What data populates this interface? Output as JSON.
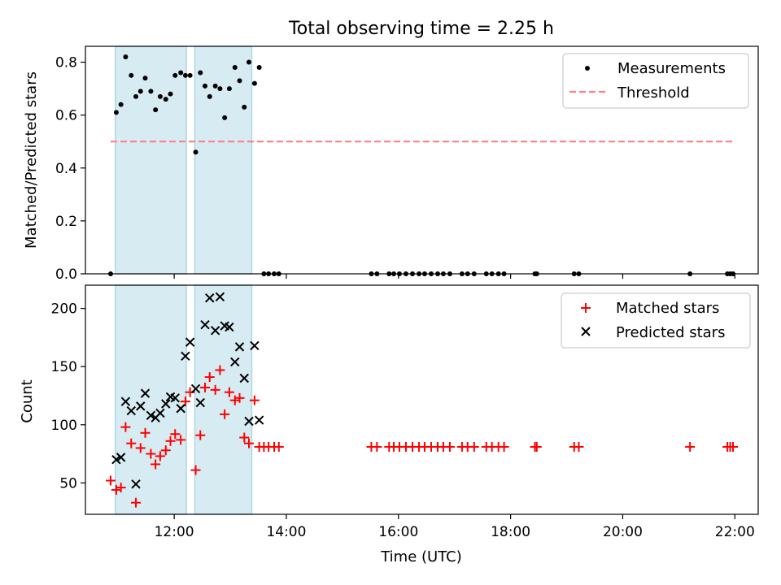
{
  "chart_data": [
    {
      "panel": "top",
      "type": "scatter",
      "title": "Total observing time = 2.25 h",
      "xlabel": "",
      "ylabel": "Matched/Predicted stars",
      "x_time_range": [
        "10:25",
        "22:25"
      ],
      "ylim": [
        0,
        0.86
      ],
      "yticks": [
        0.0,
        0.2,
        0.4,
        0.6,
        0.8
      ],
      "yticklabels": [
        "0.0",
        "0.2",
        "0.4",
        "0.6",
        "0.8"
      ],
      "shaded_intervals": [
        [
          "10:57",
          "12:13"
        ],
        [
          "12:22",
          "13:23"
        ]
      ],
      "shade_color": "#add8e6",
      "legend_position": "upper right",
      "series": [
        {
          "name": "Measurements",
          "kind": "points",
          "color": "#000000",
          "points": [
            [
              "10:52",
              0.0
            ],
            [
              "10:58",
              0.61
            ],
            [
              "11:03",
              0.64
            ],
            [
              "11:08",
              0.82
            ],
            [
              "11:14",
              0.75
            ],
            [
              "11:19",
              0.67
            ],
            [
              "11:24",
              0.69
            ],
            [
              "11:29",
              0.74
            ],
            [
              "11:35",
              0.69
            ],
            [
              "11:40",
              0.62
            ],
            [
              "11:45",
              0.67
            ],
            [
              "11:51",
              0.66
            ],
            [
              "11:56",
              0.68
            ],
            [
              "12:01",
              0.75
            ],
            [
              "12:07",
              0.76
            ],
            [
              "12:12",
              0.75
            ],
            [
              "12:17",
              0.75
            ],
            [
              "12:23",
              0.46
            ],
            [
              "12:28",
              0.76
            ],
            [
              "12:33",
              0.71
            ],
            [
              "12:38",
              0.67
            ],
            [
              "12:44",
              0.71
            ],
            [
              "12:49",
              0.7
            ],
            [
              "12:54",
              0.59
            ],
            [
              "12:59",
              0.7
            ],
            [
              "13:05",
              0.78
            ],
            [
              "13:10",
              0.73
            ],
            [
              "13:15",
              0.63
            ],
            [
              "13:20",
              0.8
            ],
            [
              "13:26",
              0.72
            ],
            [
              "13:31",
              0.78
            ],
            [
              "13:36",
              0.0
            ],
            [
              "13:41",
              0.0
            ],
            [
              "13:47",
              0.0
            ],
            [
              "13:52",
              0.0
            ],
            [
              "15:31",
              0.0
            ],
            [
              "15:37",
              0.0
            ],
            [
              "15:50",
              0.0
            ],
            [
              "15:55",
              0.0
            ],
            [
              "16:01",
              0.0
            ],
            [
              "16:08",
              0.0
            ],
            [
              "16:15",
              0.0
            ],
            [
              "16:22",
              0.0
            ],
            [
              "16:28",
              0.0
            ],
            [
              "16:35",
              0.0
            ],
            [
              "16:42",
              0.0
            ],
            [
              "16:48",
              0.0
            ],
            [
              "16:55",
              0.0
            ],
            [
              "17:08",
              0.0
            ],
            [
              "17:14",
              0.0
            ],
            [
              "17:21",
              0.0
            ],
            [
              "17:34",
              0.0
            ],
            [
              "17:40",
              0.0
            ],
            [
              "17:47",
              0.0
            ],
            [
              "17:53",
              0.0
            ],
            [
              "18:26",
              0.0
            ],
            [
              "18:28",
              0.0
            ],
            [
              "19:08",
              0.0
            ],
            [
              "19:13",
              0.0
            ],
            [
              "21:12",
              0.0
            ],
            [
              "21:52",
              0.0
            ],
            [
              "21:55",
              0.0
            ],
            [
              "21:58",
              0.0
            ]
          ]
        },
        {
          "name": "Threshold",
          "kind": "dashed-line",
          "color": "#ff8080",
          "points": [
            [
              "10:52",
              0.5
            ],
            [
              "21:58",
              0.5
            ]
          ]
        }
      ]
    },
    {
      "panel": "bottom",
      "type": "scatter",
      "xlabel": "Time (UTC)",
      "ylabel": "Count",
      "x_time_range": [
        "10:25",
        "22:25"
      ],
      "ylim": [
        23,
        220
      ],
      "yticks": [
        50,
        100,
        150,
        200
      ],
      "yticklabels": [
        "50",
        "100",
        "150",
        "200"
      ],
      "xticks": [
        "12:00",
        "14:00",
        "16:00",
        "18:00",
        "20:00",
        "22:00"
      ],
      "shaded_intervals": [
        [
          "10:57",
          "12:13"
        ],
        [
          "12:22",
          "13:23"
        ]
      ],
      "shade_color": "#add8e6",
      "legend_position": "upper right",
      "series": [
        {
          "name": "Matched stars",
          "marker": "plus",
          "color": "#ff0000",
          "points": [
            [
              "10:52",
              52
            ],
            [
              "10:58",
              44
            ],
            [
              "11:03",
              46
            ],
            [
              "11:08",
              98
            ],
            [
              "11:14",
              84
            ],
            [
              "11:19",
              33
            ],
            [
              "11:24",
              80
            ],
            [
              "11:29",
              93
            ],
            [
              "11:35",
              75
            ],
            [
              "11:40",
              66
            ],
            [
              "11:45",
              73
            ],
            [
              "11:51",
              78
            ],
            [
              "11:56",
              86
            ],
            [
              "12:01",
              92
            ],
            [
              "12:07",
              87
            ],
            [
              "12:12",
              120
            ],
            [
              "12:17",
              128
            ],
            [
              "12:23",
              61
            ],
            [
              "12:28",
              91
            ],
            [
              "12:33",
              132
            ],
            [
              "12:38",
              141
            ],
            [
              "12:44",
              130
            ],
            [
              "12:49",
              147
            ],
            [
              "12:54",
              109
            ],
            [
              "12:59",
              128
            ],
            [
              "13:05",
              121
            ],
            [
              "13:10",
              123
            ],
            [
              "13:15",
              89
            ],
            [
              "13:20",
              84
            ],
            [
              "13:26",
              121
            ],
            [
              "13:31",
              81
            ],
            [
              "13:36",
              81
            ],
            [
              "13:41",
              81
            ],
            [
              "13:47",
              81
            ],
            [
              "13:52",
              81
            ],
            [
              "15:31",
              81
            ],
            [
              "15:37",
              81
            ],
            [
              "15:50",
              81
            ],
            [
              "15:55",
              81
            ],
            [
              "16:01",
              81
            ],
            [
              "16:08",
              81
            ],
            [
              "16:15",
              81
            ],
            [
              "16:22",
              81
            ],
            [
              "16:28",
              81
            ],
            [
              "16:35",
              81
            ],
            [
              "16:42",
              81
            ],
            [
              "16:48",
              81
            ],
            [
              "16:55",
              81
            ],
            [
              "17:08",
              81
            ],
            [
              "17:14",
              81
            ],
            [
              "17:21",
              81
            ],
            [
              "17:34",
              81
            ],
            [
              "17:40",
              81
            ],
            [
              "17:47",
              81
            ],
            [
              "17:53",
              81
            ],
            [
              "18:26",
              81
            ],
            [
              "18:28",
              81
            ],
            [
              "19:08",
              81
            ],
            [
              "19:13",
              81
            ],
            [
              "21:12",
              81
            ],
            [
              "21:52",
              81
            ],
            [
              "21:55",
              81
            ],
            [
              "21:58",
              81
            ]
          ]
        },
        {
          "name": "Predicted stars",
          "marker": "x",
          "color": "#000000",
          "points": [
            [
              "10:58",
              70
            ],
            [
              "11:03",
              72
            ],
            [
              "11:08",
              120
            ],
            [
              "11:14",
              112
            ],
            [
              "11:19",
              49
            ],
            [
              "11:24",
              116
            ],
            [
              "11:29",
              127
            ],
            [
              "11:35",
              108
            ],
            [
              "11:40",
              106
            ],
            [
              "11:45",
              110
            ],
            [
              "11:51",
              118
            ],
            [
              "11:56",
              124
            ],
            [
              "12:01",
              123
            ],
            [
              "12:07",
              114
            ],
            [
              "12:12",
              159
            ],
            [
              "12:17",
              171
            ],
            [
              "12:23",
              131
            ],
            [
              "12:28",
              119
            ],
            [
              "12:33",
              186
            ],
            [
              "12:38",
              209
            ],
            [
              "12:44",
              181
            ],
            [
              "12:49",
              210
            ],
            [
              "12:54",
              185
            ],
            [
              "12:59",
              184
            ],
            [
              "13:05",
              154
            ],
            [
              "13:10",
              167
            ],
            [
              "13:15",
              140
            ],
            [
              "13:20",
              103
            ],
            [
              "13:26",
              168
            ],
            [
              "13:31",
              104
            ]
          ]
        }
      ]
    }
  ]
}
